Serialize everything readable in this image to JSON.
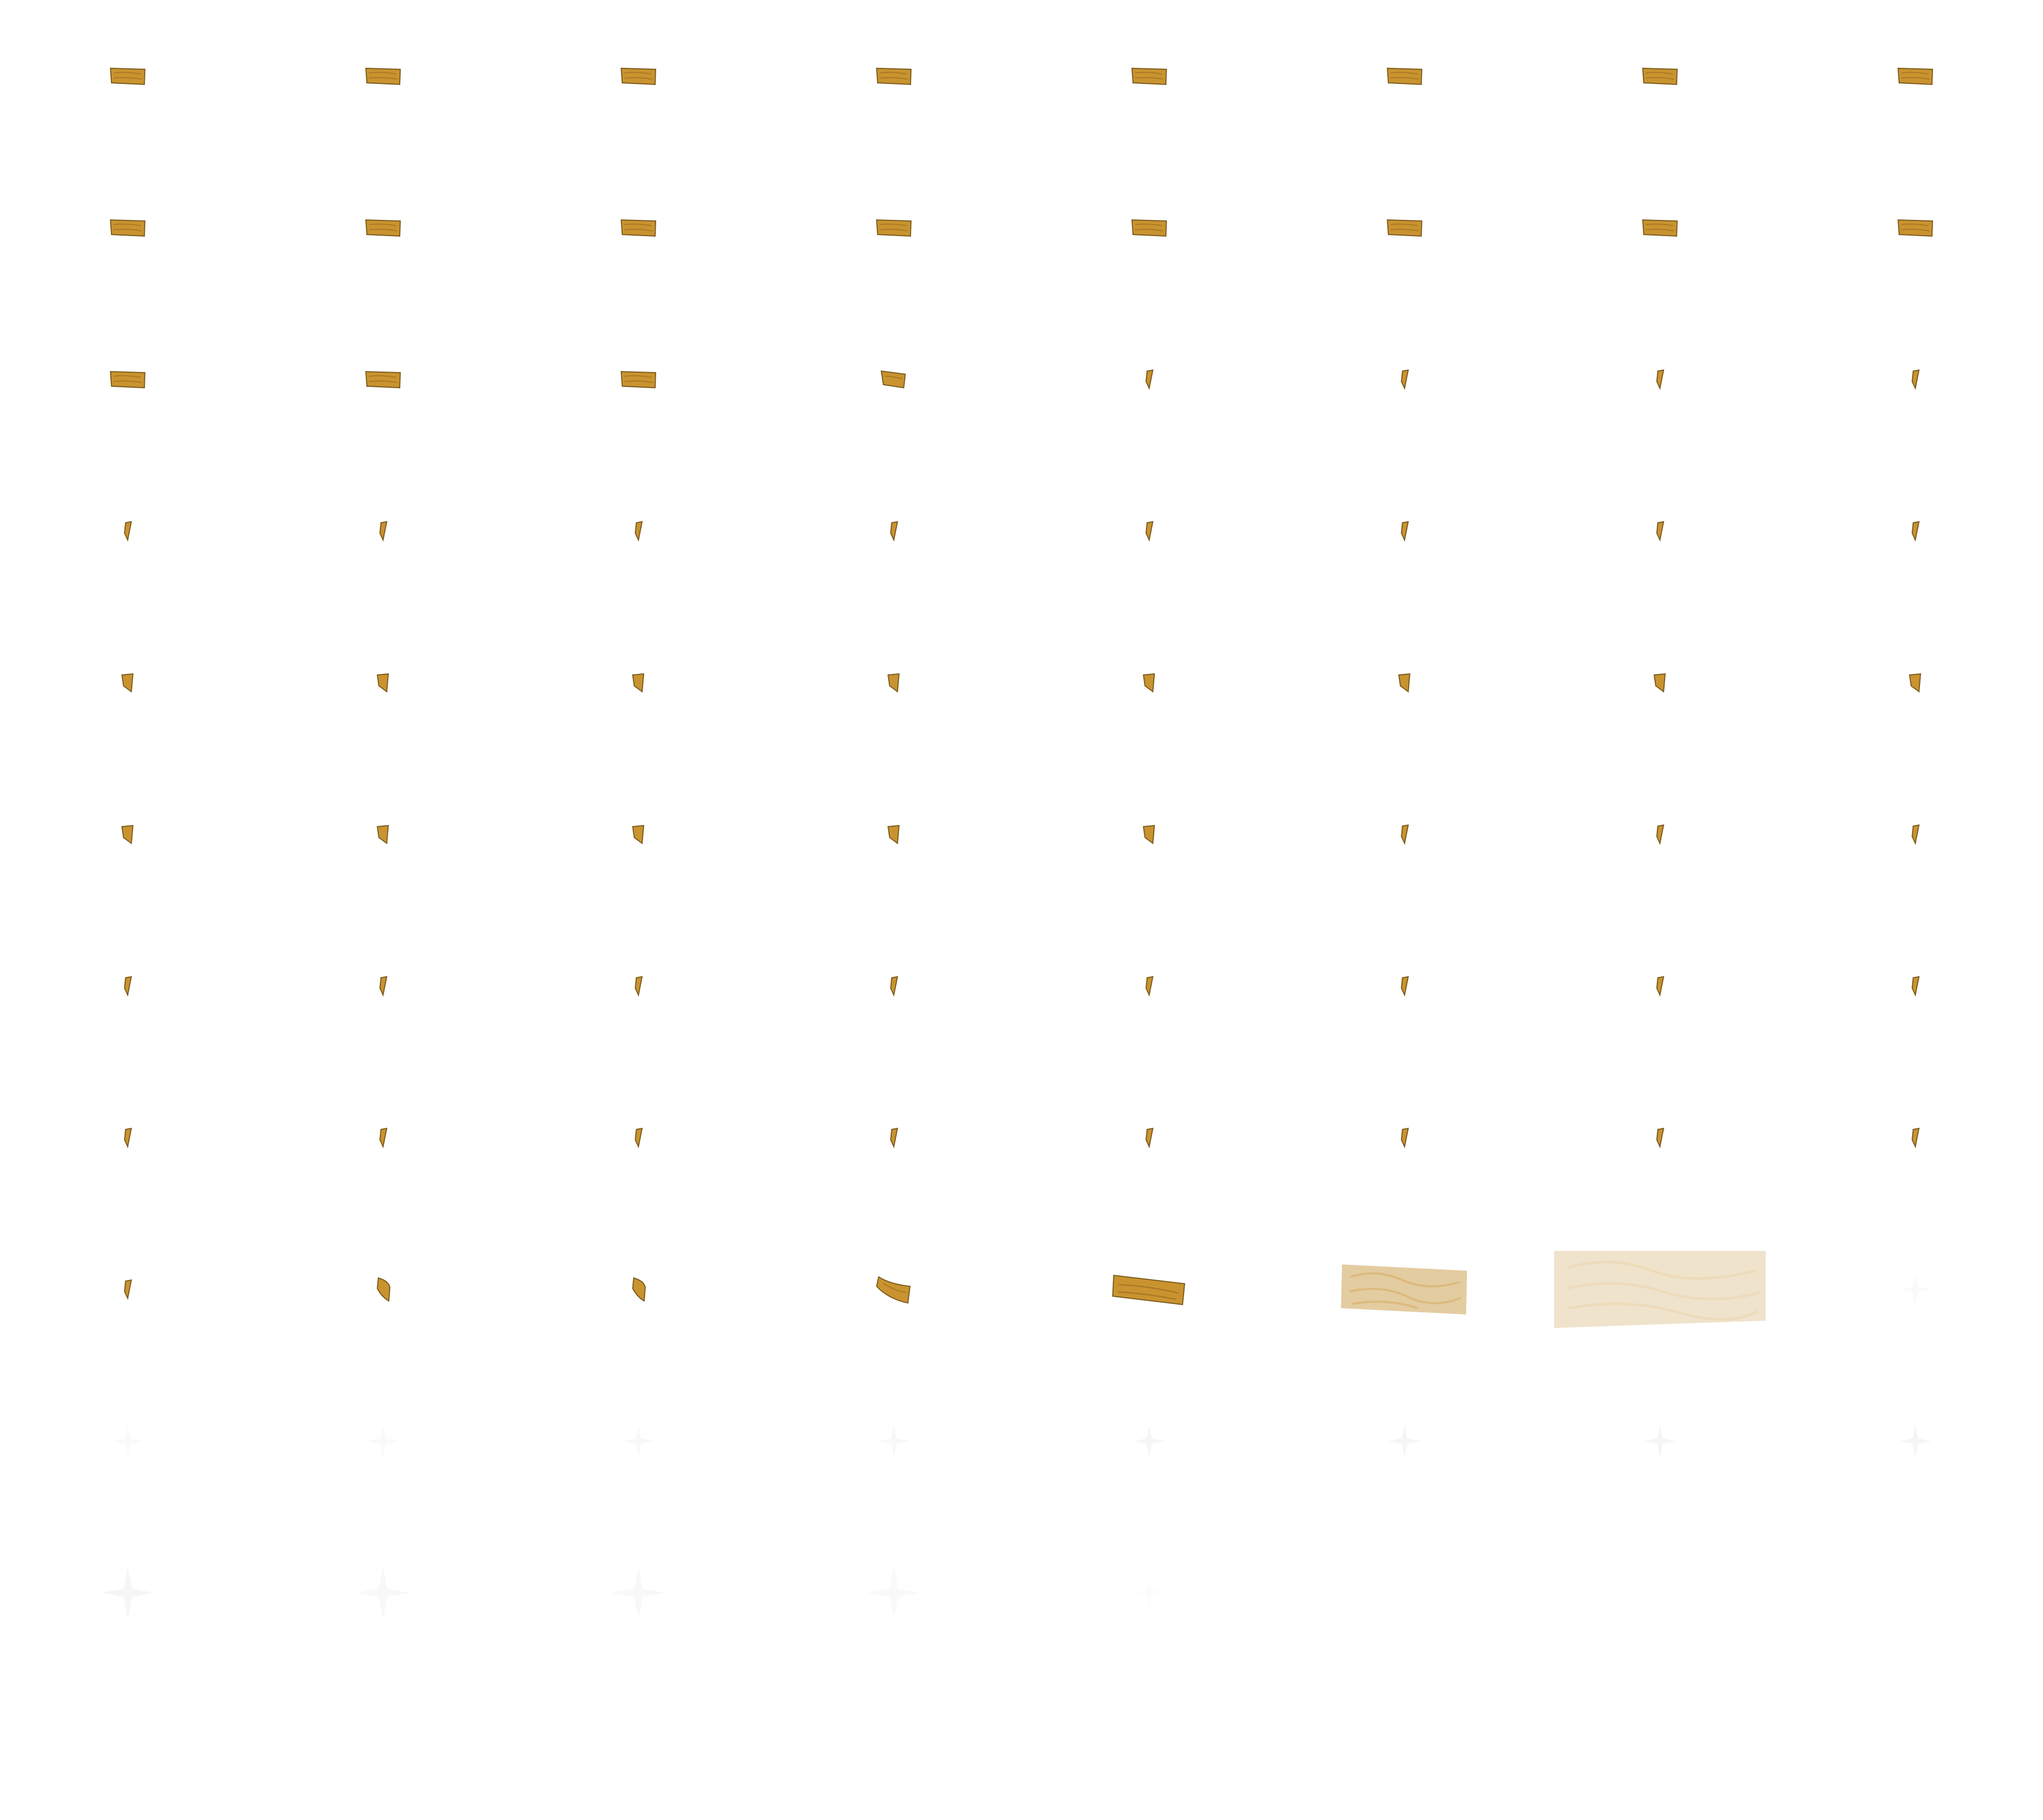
{
  "sprite_sheet": {
    "columns": 8,
    "rows": 12,
    "background": "#ffffff",
    "colors": {
      "wood": "#c9932f",
      "wood_dark": "#7a5a1c",
      "wood_grain": "#a87a24",
      "wood_pale": "#d9b77a",
      "wood_faded": "#ead9b8"
    },
    "icon": "wood-plank-icon",
    "frames": [
      {
        "kind": "plank",
        "opacity": 1
      },
      {
        "kind": "plank",
        "opacity": 1
      },
      {
        "kind": "plank",
        "opacity": 1
      },
      {
        "kind": "plank",
        "opacity": 1
      },
      {
        "kind": "plank",
        "opacity": 1
      },
      {
        "kind": "plank",
        "opacity": 1
      },
      {
        "kind": "plank",
        "opacity": 1
      },
      {
        "kind": "plank",
        "opacity": 1
      },
      {
        "kind": "plank",
        "opacity": 1
      },
      {
        "kind": "plank",
        "opacity": 1
      },
      {
        "kind": "plank",
        "opacity": 1
      },
      {
        "kind": "plank",
        "opacity": 1
      },
      {
        "kind": "plank",
        "opacity": 1
      },
      {
        "kind": "plank",
        "opacity": 1
      },
      {
        "kind": "plank",
        "opacity": 1
      },
      {
        "kind": "plank",
        "opacity": 1
      },
      {
        "kind": "plank",
        "opacity": 1
      },
      {
        "kind": "plank",
        "opacity": 1
      },
      {
        "kind": "plank",
        "opacity": 1
      },
      {
        "kind": "plank-tilt",
        "opacity": 1
      },
      {
        "kind": "sliver",
        "opacity": 1
      },
      {
        "kind": "sliver",
        "opacity": 1
      },
      {
        "kind": "sliver",
        "opacity": 1
      },
      {
        "kind": "sliver",
        "opacity": 1
      },
      {
        "kind": "sliver",
        "opacity": 1
      },
      {
        "kind": "sliver",
        "opacity": 1
      },
      {
        "kind": "sliver",
        "opacity": 1
      },
      {
        "kind": "sliver",
        "opacity": 1
      },
      {
        "kind": "sliver",
        "opacity": 1
      },
      {
        "kind": "sliver",
        "opacity": 1
      },
      {
        "kind": "sliver",
        "opacity": 1
      },
      {
        "kind": "sliver",
        "opacity": 1
      },
      {
        "kind": "sliver-wide",
        "opacity": 1
      },
      {
        "kind": "sliver-wide",
        "opacity": 1
      },
      {
        "kind": "sliver-wide",
        "opacity": 1
      },
      {
        "kind": "sliver-wide",
        "opacity": 1
      },
      {
        "kind": "sliver-wide",
        "opacity": 1
      },
      {
        "kind": "sliver-wide",
        "opacity": 1
      },
      {
        "kind": "sliver-wide",
        "opacity": 1
      },
      {
        "kind": "sliver-wide",
        "opacity": 1
      },
      {
        "kind": "sliver-wide",
        "opacity": 1
      },
      {
        "kind": "sliver-wide",
        "opacity": 1
      },
      {
        "kind": "sliver-wide",
        "opacity": 1
      },
      {
        "kind": "sliver-wide",
        "opacity": 1
      },
      {
        "kind": "sliver-wide",
        "opacity": 1
      },
      {
        "kind": "sliver",
        "opacity": 1
      },
      {
        "kind": "sliver",
        "opacity": 1
      },
      {
        "kind": "sliver",
        "opacity": 1
      },
      {
        "kind": "sliver",
        "opacity": 1
      },
      {
        "kind": "sliver",
        "opacity": 1
      },
      {
        "kind": "sliver",
        "opacity": 1
      },
      {
        "kind": "sliver",
        "opacity": 1
      },
      {
        "kind": "sliver",
        "opacity": 1
      },
      {
        "kind": "sliver",
        "opacity": 1
      },
      {
        "kind": "sliver",
        "opacity": 1
      },
      {
        "kind": "sliver",
        "opacity": 1
      },
      {
        "kind": "sliver",
        "opacity": 1
      },
      {
        "kind": "sliver",
        "opacity": 1
      },
      {
        "kind": "sliver",
        "opacity": 1
      },
      {
        "kind": "sliver",
        "opacity": 1
      },
      {
        "kind": "sliver",
        "opacity": 1
      },
      {
        "kind": "sliver",
        "opacity": 1
      },
      {
        "kind": "sliver",
        "opacity": 1
      },
      {
        "kind": "sliver",
        "opacity": 1
      },
      {
        "kind": "sliver",
        "opacity": 1
      },
      {
        "kind": "curl",
        "opacity": 1
      },
      {
        "kind": "curl",
        "opacity": 1
      },
      {
        "kind": "curl-wide",
        "opacity": 1
      },
      {
        "kind": "board-medium",
        "opacity": 1
      },
      {
        "kind": "board-large",
        "opacity": 0.7
      },
      {
        "kind": "board-xlarge",
        "opacity": 0.38
      },
      {
        "kind": "sparkle",
        "opacity": 0.05
      },
      {
        "kind": "sparkle",
        "opacity": 0.05
      },
      {
        "kind": "sparkle",
        "opacity": 0.06
      },
      {
        "kind": "sparkle",
        "opacity": 0.07
      },
      {
        "kind": "sparkle",
        "opacity": 0.08
      },
      {
        "kind": "sparkle",
        "opacity": 0.09
      },
      {
        "kind": "sparkle",
        "opacity": 0.1
      },
      {
        "kind": "sparkle",
        "opacity": 0.1
      },
      {
        "kind": "sparkle",
        "opacity": 0.11
      },
      {
        "kind": "sparkle-large",
        "opacity": 0.09
      },
      {
        "kind": "sparkle-large",
        "opacity": 0.08
      },
      {
        "kind": "sparkle-large",
        "opacity": 0.07
      },
      {
        "kind": "sparkle-large",
        "opacity": 0.06
      },
      {
        "kind": "sparkle",
        "opacity": 0.03
      },
      {
        "kind": "empty",
        "opacity": 0
      },
      {
        "kind": "empty",
        "opacity": 0
      },
      {
        "kind": "empty",
        "opacity": 0
      },
      {
        "kind": "empty",
        "opacity": 0
      },
      {
        "kind": "empty",
        "opacity": 0
      },
      {
        "kind": "empty",
        "opacity": 0
      },
      {
        "kind": "empty",
        "opacity": 0
      },
      {
        "kind": "empty",
        "opacity": 0
      },
      {
        "kind": "empty",
        "opacity": 0
      },
      {
        "kind": "empty",
        "opacity": 0
      },
      {
        "kind": "empty",
        "opacity": 0
      }
    ]
  }
}
